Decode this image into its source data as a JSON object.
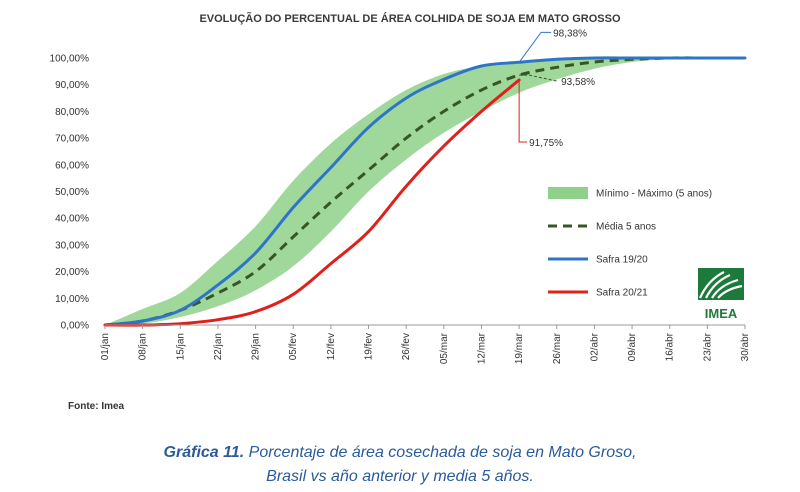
{
  "chart_data": {
    "type": "line",
    "title": "EVOLUÇÃO DO PERCENTUAL DE ÁREA COLHIDA DE SOJA EM MATO GROSSO",
    "categories": [
      "01/jan",
      "08/jan",
      "15/jan",
      "22/jan",
      "29/jan",
      "05/fev",
      "12/fev",
      "19/fev",
      "26/fev",
      "05/mar",
      "12/mar",
      "19/mar",
      "26/mar",
      "02/abr",
      "09/abr",
      "16/abr",
      "23/abr",
      "30/abr"
    ],
    "y_ticks": [
      "0,00%",
      "10,00%",
      "20,00%",
      "30,00%",
      "40,00%",
      "50,00%",
      "60,00%",
      "70,00%",
      "80,00%",
      "90,00%",
      "100,00%"
    ],
    "ylim": [
      0,
      100
    ],
    "band": {
      "name": "Mínimo - Máximo (5 anos)",
      "color": "#8fd18a",
      "min": [
        0,
        0.5,
        3,
        7,
        13,
        22,
        35,
        50,
        62,
        72,
        80,
        87,
        92,
        96,
        98.5,
        99.5,
        100,
        100
      ],
      "max": [
        0,
        6,
        12,
        24,
        37,
        54,
        68,
        79,
        88,
        94,
        97,
        98.5,
        99.5,
        100,
        100,
        100,
        100,
        100
      ]
    },
    "series": [
      {
        "name": "Média 5 anos",
        "color": "#375623",
        "dash": true,
        "values": [
          0,
          1.5,
          5.5,
          12,
          20,
          33,
          46,
          58,
          70,
          80,
          88,
          93.58,
          96.5,
          98.5,
          99.5,
          100,
          100,
          100
        ]
      },
      {
        "name": "Safra 19/20",
        "color": "#2e75c8",
        "dash": false,
        "values": [
          0,
          1.5,
          5.5,
          15,
          27,
          44,
          59,
          74,
          85,
          92,
          97,
          98.38,
          99.5,
          100,
          100,
          100,
          100,
          100
        ]
      },
      {
        "name": "Safra 20/21",
        "color": "#e0201b",
        "dash": false,
        "values": [
          0,
          0,
          0.5,
          2,
          5,
          11.5,
          23,
          35,
          52,
          67,
          80,
          91.75,
          null,
          null,
          null,
          null,
          null,
          null
        ]
      }
    ],
    "annotations": [
      {
        "text": "98,38%",
        "series": 1,
        "index": 11
      },
      {
        "text": "93,58%",
        "series": 0,
        "index": 11
      },
      {
        "text": "91,75%",
        "series": 2,
        "index": 11
      }
    ],
    "legend_position": "right",
    "grid": false
  },
  "logo": {
    "text": "IMEA",
    "color": "#1e7a3a"
  },
  "source": "Fonte: Imea",
  "caption": {
    "label": "Gráfica 11.",
    "line1": "Porcentaje de área cosechada de soja en Mato Groso,",
    "line2": "Brasil vs año anterior y media 5 años."
  }
}
